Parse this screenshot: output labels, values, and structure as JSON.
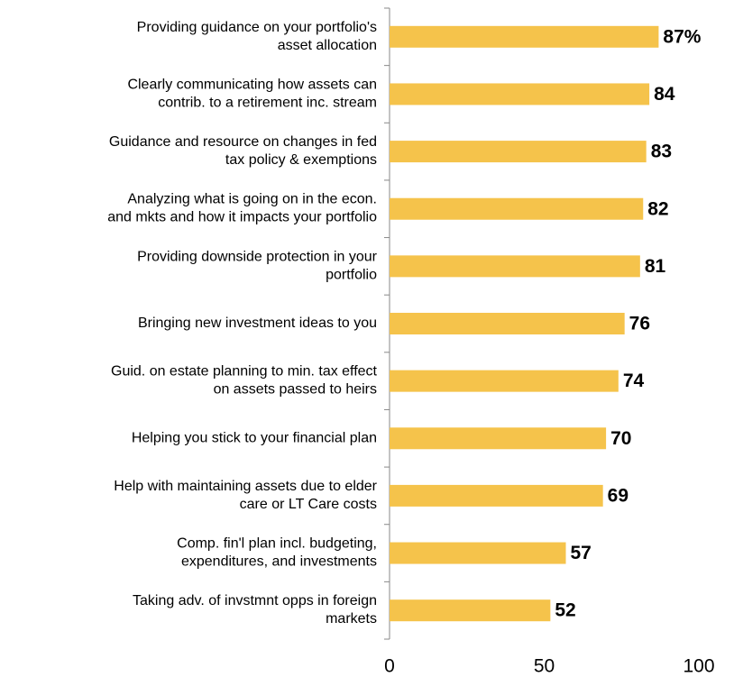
{
  "chart_data": {
    "type": "hbar",
    "categories": [
      "Providing guidance on your portfolio's\nasset allocation",
      "Clearly communicating how assets can\ncontrib. to a retirement inc. stream",
      "Guidance and resource on changes in fed\ntax policy & exemptions",
      "Analyzing what is going on in the econ.\nand mkts and how it impacts your portfolio",
      "Providing downside protection in your\nportfolio",
      "Bringing new investment ideas to you",
      "Guid. on estate planning to min. tax effect\non assets passed to heirs",
      "Helping you stick to your financial plan",
      "Help with maintaining assets due to elder\ncare or LT Care costs",
      "Comp. fin'l plan incl. budgeting,\nexpenditures, and investments",
      "Taking adv. of invstmnt opps in foreign\nmarkets"
    ],
    "values": [
      87,
      84,
      83,
      82,
      81,
      76,
      74,
      70,
      69,
      57,
      52
    ],
    "value_labels": [
      "87%",
      "84",
      "83",
      "82",
      "81",
      "76",
      "74",
      "70",
      "69",
      "57",
      "52"
    ],
    "color": "#f5c34b",
    "xlim": [
      0,
      100
    ],
    "xticks": [
      0,
      50,
      100
    ],
    "grid": false
  }
}
